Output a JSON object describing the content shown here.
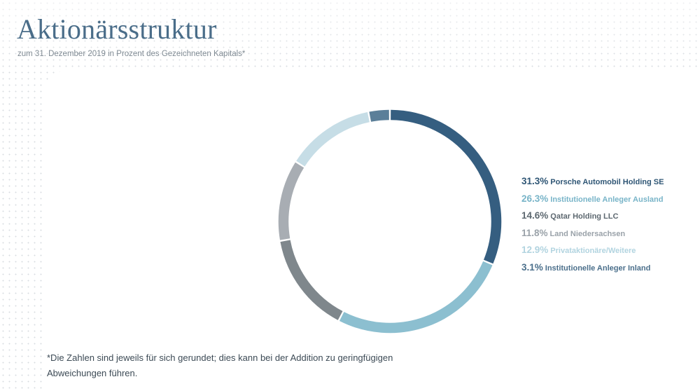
{
  "header": {
    "title": "Aktionärsstruktur",
    "subtitle": "zum 31. Dezember 2019 in Prozent des Gezeichneten Kapitals*"
  },
  "chart_data": {
    "type": "pie",
    "variant": "donut",
    "unit": "%",
    "start": "top",
    "direction": "clockwise",
    "legend_position": "right",
    "series": [
      {
        "label": "Porsche Automobil Holding SE",
        "value": 31.3,
        "display": "31.3%",
        "color": "#355e80"
      },
      {
        "label": "Institutionelle Anleger Ausland",
        "value": 26.3,
        "display": "26.3%",
        "color": "#8cbfd0"
      },
      {
        "label": "Qatar Holding LLC",
        "value": 14.6,
        "display": "14.6%",
        "color": "#7f878c"
      },
      {
        "label": "Land Niedersachsen",
        "value": 11.8,
        "display": "11.8%",
        "color": "#a8adb3"
      },
      {
        "label": "Privataktionäre/Weitere",
        "value": 12.9,
        "display": "12.9%",
        "color": "#c6dde6"
      },
      {
        "label": "Institutionelle Anleger Inland",
        "value": 3.1,
        "display": "3.1%",
        "color": "#5b7f99"
      }
    ],
    "legend_text_colors": [
      "#2f5675",
      "#78b4c8",
      "#5d6870",
      "#9aa2a9",
      "#b2d4e0",
      "#4b6f8b"
    ]
  },
  "footnote": {
    "line1": "*Die Zahlen sind jeweils für sich gerundet; dies kann bei der Addition zu geringfügigen",
    "line2": "Abweichungen führen."
  }
}
